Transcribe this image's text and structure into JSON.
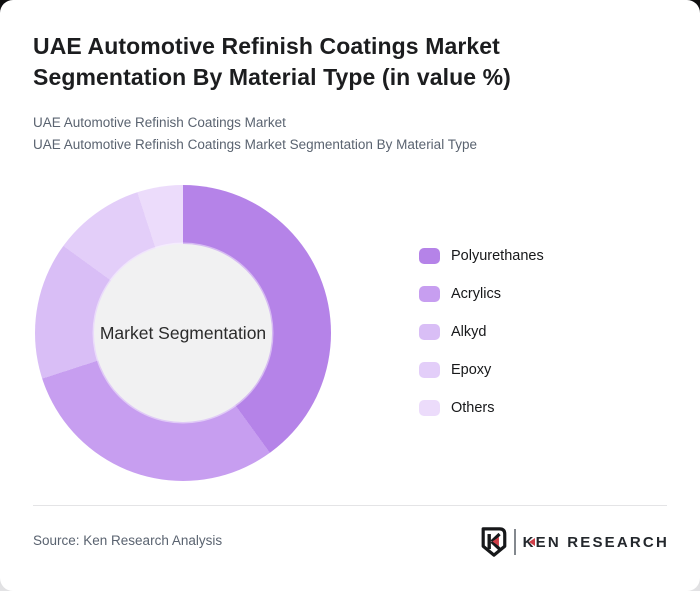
{
  "card": {
    "title": "UAE Automotive Refinish Coatings Market Segmentation By Material Type (in value %)",
    "subtitle_line1": "UAE Automotive Refinish Coatings Market",
    "subtitle_line2": "UAE Automotive Refinish Coatings Market Segmentation By Material Type"
  },
  "chart_data": {
    "type": "pie",
    "donut": true,
    "title": "UAE Automotive Refinish Coatings Market Segmentation By Material Type (in value %)",
    "center_label": "Market Segmentation",
    "unit": "%",
    "start_angle_deg": 0,
    "direction": "clockwise",
    "categories": [
      "Polyurethanes",
      "Acrylics",
      "Alkyd",
      "Epoxy",
      "Others"
    ],
    "values": [
      40,
      30,
      15,
      10,
      5
    ],
    "colors": [
      "#b583e8",
      "#c79ef0",
      "#d9bef6",
      "#e3cef9",
      "#ecdcfb"
    ],
    "inner_circle_color": "#f1f1f2",
    "legend_position": "right"
  },
  "footer": {
    "source": "Source: Ken Research Analysis",
    "logo_k": "K",
    "logo_rest": "EN RESEARCH",
    "logo_accent_color": "#ce3e47",
    "logo_dark_color": "#17181a"
  }
}
